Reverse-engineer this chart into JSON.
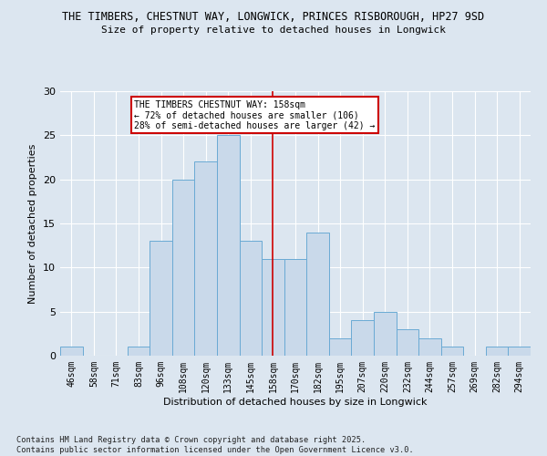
{
  "title_line1": "THE TIMBERS, CHESTNUT WAY, LONGWICK, PRINCES RISBOROUGH, HP27 9SD",
  "title_line2": "Size of property relative to detached houses in Longwick",
  "xlabel": "Distribution of detached houses by size in Longwick",
  "ylabel": "Number of detached properties",
  "categories": [
    "46sqm",
    "58sqm",
    "71sqm",
    "83sqm",
    "96sqm",
    "108sqm",
    "120sqm",
    "133sqm",
    "145sqm",
    "158sqm",
    "170sqm",
    "182sqm",
    "195sqm",
    "207sqm",
    "220sqm",
    "232sqm",
    "244sqm",
    "257sqm",
    "269sqm",
    "282sqm",
    "294sqm"
  ],
  "values": [
    1,
    0,
    0,
    1,
    13,
    20,
    22,
    25,
    13,
    11,
    11,
    14,
    2,
    4,
    5,
    3,
    2,
    1,
    0,
    1,
    1
  ],
  "bar_color": "#c9d9ea",
  "bar_edge_color": "#6aaad4",
  "bar_width": 1.0,
  "vline_x": 9,
  "vline_color": "#cc0000",
  "annotation_text": "THE TIMBERS CHESTNUT WAY: 158sqm\n← 72% of detached houses are smaller (106)\n28% of semi-detached houses are larger (42) →",
  "annotation_box_color": "#ffffff",
  "annotation_border_color": "#cc0000",
  "ylim": [
    0,
    30
  ],
  "yticks": [
    0,
    5,
    10,
    15,
    20,
    25,
    30
  ],
  "bg_color": "#dce6f0",
  "grid_color": "#ffffff",
  "footer": "Contains HM Land Registry data © Crown copyright and database right 2025.\nContains public sector information licensed under the Open Government Licence v3.0."
}
